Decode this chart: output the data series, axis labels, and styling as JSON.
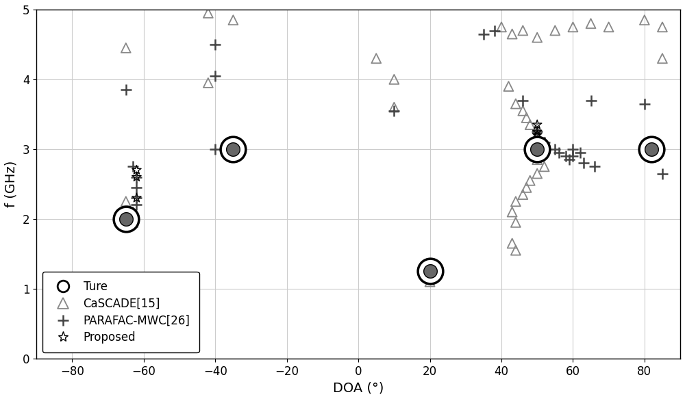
{
  "title": "",
  "xlabel": "DOA (°)",
  "ylabel": "f (GHz)",
  "xlim": [
    -90,
    90
  ],
  "ylim": [
    0,
    5
  ],
  "xticks": [
    -80,
    -60,
    -40,
    -20,
    0,
    20,
    40,
    60,
    80
  ],
  "yticks": [
    0,
    1,
    2,
    3,
    4,
    5
  ],
  "true_points": [
    [
      -65,
      2.0
    ],
    [
      -35,
      3.0
    ],
    [
      20,
      1.25
    ],
    [
      50,
      3.0
    ],
    [
      82,
      3.0
    ]
  ],
  "cascade_points": [
    [
      -65,
      4.45
    ],
    [
      -42,
      4.95
    ],
    [
      -42,
      3.95
    ],
    [
      -65,
      2.25
    ],
    [
      -63,
      2.1
    ],
    [
      -63,
      1.95
    ],
    [
      -35,
      4.85
    ],
    [
      5,
      4.3
    ],
    [
      10,
      4.0
    ],
    [
      10,
      3.6
    ],
    [
      20,
      1.35
    ],
    [
      20,
      1.25
    ],
    [
      20,
      1.1
    ],
    [
      40,
      4.75
    ],
    [
      43,
      4.65
    ],
    [
      46,
      4.7
    ],
    [
      50,
      4.6
    ],
    [
      55,
      4.7
    ],
    [
      60,
      4.75
    ],
    [
      65,
      4.8
    ],
    [
      70,
      4.75
    ],
    [
      80,
      4.85
    ],
    [
      85,
      4.75
    ],
    [
      85,
      4.3
    ],
    [
      42,
      3.9
    ],
    [
      44,
      3.65
    ],
    [
      46,
      3.55
    ],
    [
      47,
      3.45
    ],
    [
      48,
      3.35
    ],
    [
      50,
      3.3
    ],
    [
      50,
      3.2
    ],
    [
      52,
      3.1
    ],
    [
      50,
      2.95
    ],
    [
      50,
      2.85
    ],
    [
      52,
      2.75
    ],
    [
      50,
      2.65
    ],
    [
      48,
      2.55
    ],
    [
      47,
      2.45
    ],
    [
      46,
      2.35
    ],
    [
      44,
      2.25
    ],
    [
      43,
      2.1
    ],
    [
      44,
      1.95
    ],
    [
      43,
      1.65
    ],
    [
      44,
      1.55
    ]
  ],
  "parafac_points": [
    [
      -65,
      3.85
    ],
    [
      -63,
      2.75
    ],
    [
      -62,
      2.6
    ],
    [
      -62,
      2.45
    ],
    [
      -62,
      2.3
    ],
    [
      -62,
      2.2
    ],
    [
      -40,
      4.5
    ],
    [
      -40,
      4.05
    ],
    [
      -40,
      3.0
    ],
    [
      10,
      3.55
    ],
    [
      35,
      4.65
    ],
    [
      38,
      4.7
    ],
    [
      46,
      3.7
    ],
    [
      50,
      3.25
    ],
    [
      52,
      3.1
    ],
    [
      55,
      3.0
    ],
    [
      56,
      2.95
    ],
    [
      58,
      2.9
    ],
    [
      59,
      2.85
    ],
    [
      60,
      2.9
    ],
    [
      60,
      3.0
    ],
    [
      62,
      2.95
    ],
    [
      63,
      2.8
    ],
    [
      65,
      3.7
    ],
    [
      66,
      2.75
    ],
    [
      80,
      3.65
    ],
    [
      85,
      2.65
    ]
  ],
  "proposed_points": [
    [
      -65,
      2.05
    ],
    [
      -64,
      2.0
    ],
    [
      -63,
      1.98
    ],
    [
      -62,
      2.3
    ],
    [
      -62,
      2.6
    ],
    [
      -62,
      2.7
    ],
    [
      -35,
      3.05
    ],
    [
      -35,
      2.97
    ],
    [
      20,
      1.3
    ],
    [
      20,
      1.25
    ],
    [
      20,
      1.15
    ],
    [
      50,
      3.35
    ],
    [
      50,
      3.25
    ],
    [
      50,
      3.2
    ],
    [
      50,
      3.1
    ],
    [
      50,
      3.0
    ],
    [
      50,
      2.95
    ],
    [
      82,
      3.05
    ],
    [
      82,
      3.0
    ],
    [
      82,
      2.95
    ]
  ],
  "cascade_color": "#888888",
  "parafac_color": "#444444",
  "proposed_color": "#000000",
  "bg_color": "#ffffff",
  "grid_color": "#cccccc"
}
